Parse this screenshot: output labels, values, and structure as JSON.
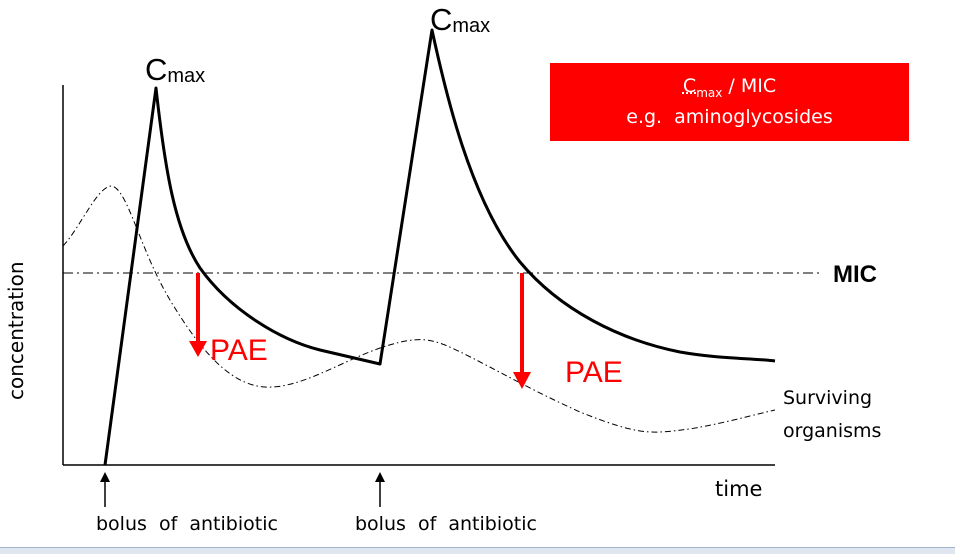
{
  "labels": {
    "cmax_c": "C",
    "cmax_sub": "max",
    "mic": "MIC",
    "pae": "PAE",
    "surviving_line1": "Surviving",
    "surviving_line2": "organisms",
    "y_axis": "concentration",
    "x_axis": "time",
    "bolus": "bolus  of  antibiotic"
  },
  "info_box": {
    "line1_c": "C",
    "line1_sub": "max",
    "line1_rest": " / MIC",
    "line2": "e.g.  aminoglycosides"
  },
  "colors": {
    "accent": "#ff0000",
    "curve": "#000000"
  }
}
